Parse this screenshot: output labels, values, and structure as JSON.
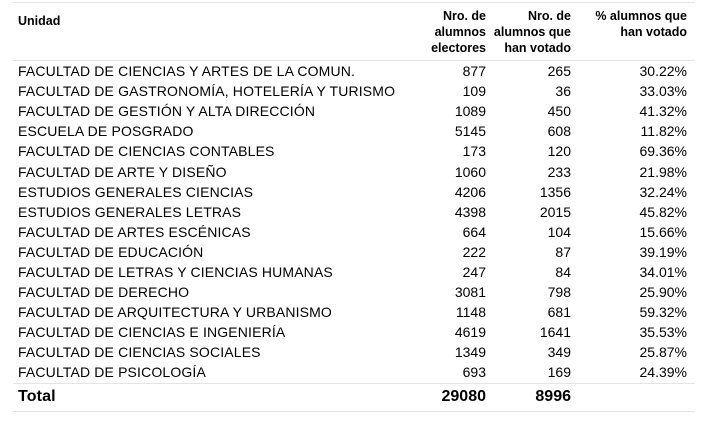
{
  "headers": {
    "unit": "Unidad",
    "electores": "Nro. de alumnos electores",
    "votado": "Nro. de alumnos que han votado",
    "pct": "% alumnos que han votado"
  },
  "rows": [
    {
      "unit": "FACULTAD DE CIENCIAS Y ARTES DE LA COMUN.",
      "electores": "877",
      "votado": "265",
      "pct": "30.22%"
    },
    {
      "unit": "FACULTAD DE GASTRONOMÍA, HOTELERÍA Y TURISMO",
      "electores": "109",
      "votado": "36",
      "pct": "33.03%"
    },
    {
      "unit": "FACULTAD DE GESTIÓN Y ALTA DIRECCIÓN",
      "electores": "1089",
      "votado": "450",
      "pct": "41.32%"
    },
    {
      "unit": "ESCUELA DE POSGRADO",
      "electores": "5145",
      "votado": "608",
      "pct": "11.82%"
    },
    {
      "unit": "FACULTAD DE CIENCIAS CONTABLES",
      "electores": "173",
      "votado": "120",
      "pct": "69.36%"
    },
    {
      "unit": "FACULTAD DE ARTE Y DISEÑO",
      "electores": "1060",
      "votado": "233",
      "pct": "21.98%"
    },
    {
      "unit": "ESTUDIOS GENERALES CIENCIAS",
      "electores": "4206",
      "votado": "1356",
      "pct": "32.24%"
    },
    {
      "unit": "ESTUDIOS GENERALES LETRAS",
      "electores": "4398",
      "votado": "2015",
      "pct": "45.82%"
    },
    {
      "unit": "FACULTAD DE ARTES ESCÉNICAS",
      "electores": "664",
      "votado": "104",
      "pct": "15.66%"
    },
    {
      "unit": "FACULTAD DE EDUCACIÓN",
      "electores": "222",
      "votado": "87",
      "pct": "39.19%"
    },
    {
      "unit": "FACULTAD DE LETRAS Y CIENCIAS HUMANAS",
      "electores": "247",
      "votado": "84",
      "pct": "34.01%"
    },
    {
      "unit": "FACULTAD DE DERECHO",
      "electores": "3081",
      "votado": "798",
      "pct": "25.90%"
    },
    {
      "unit": "FACULTAD DE ARQUITECTURA Y URBANISMO",
      "electores": "1148",
      "votado": "681",
      "pct": "59.32%"
    },
    {
      "unit": "FACULTAD DE CIENCIAS E INGENIERÍA",
      "electores": "4619",
      "votado": "1641",
      "pct": "35.53%"
    },
    {
      "unit": "FACULTAD DE CIENCIAS SOCIALES",
      "electores": "1349",
      "votado": "349",
      "pct": "25.87%"
    },
    {
      "unit": "FACULTAD DE PSICOLOGÍA",
      "electores": "693",
      "votado": "169",
      "pct": "24.39%"
    }
  ],
  "total": {
    "label": "Total",
    "electores": "29080",
    "votado": "8996",
    "pct": ""
  }
}
